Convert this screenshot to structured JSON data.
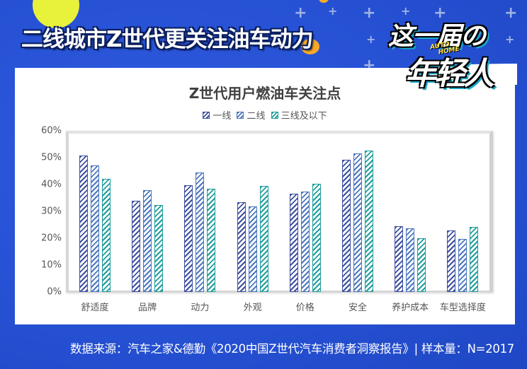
{
  "header": {
    "headline": "二线城市Z世代更关注油车动力",
    "badge_line1": "这一届の",
    "badge_line2": "年轻人",
    "badge_brand_top": "AUTO",
    "badge_brand_bottom": "HOME"
  },
  "colors": {
    "background": "#2a53d6",
    "series_1": "#3d4f9f",
    "series_2": "#4a76bd",
    "series_3": "#1f9c9c",
    "accent_yellow": "#e8f23a",
    "accent_orange": "#f7a928"
  },
  "footer": {
    "source": "数据来源：汽车之家&德勤《2020中国Z世代汽车消费者洞察报告》| 样本量：N=2017"
  },
  "chart_data": {
    "type": "bar",
    "title": "Z世代用户燃油车关注点",
    "xlabel": "",
    "ylabel": "",
    "ylim": [
      0,
      60
    ],
    "y_ticks": [
      "0%",
      "10%",
      "20%",
      "30%",
      "40%",
      "50%",
      "60%"
    ],
    "grid": false,
    "legend_position": "top",
    "bar_style": "hatched",
    "categories": [
      "舒适度",
      "品牌",
      "动力",
      "外观",
      "价格",
      "安全",
      "养护成本",
      "车型选择度"
    ],
    "series": [
      {
        "name": "一线",
        "values": [
          50.7,
          34.0,
          39.7,
          33.4,
          36.5,
          49.2,
          24.5,
          23.0
        ]
      },
      {
        "name": "二线",
        "values": [
          47.0,
          38.0,
          44.5,
          31.8,
          37.3,
          51.6,
          23.8,
          19.8
        ]
      },
      {
        "name": "三线及以下",
        "values": [
          42.0,
          32.5,
          38.3,
          39.6,
          40.2,
          52.6,
          20.0,
          24.3
        ]
      }
    ]
  }
}
